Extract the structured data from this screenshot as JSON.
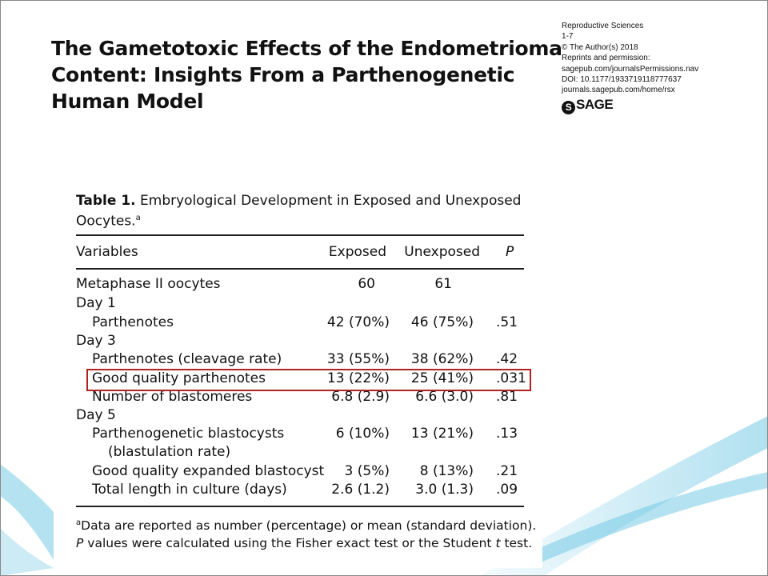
{
  "header": {
    "title_lines": [
      "The Gametotoxic Effects of the Endometrioma",
      "Content: Insights From a Parthenogenetic",
      "Human Model"
    ],
    "meta": [
      "Reproductive Sciences",
      "1-7",
      "© The Author(s) 2018",
      "Reprints and permission:",
      "sagepub.com/journalsPermissions.nav",
      "DOI: 10.1177/1933719118777637",
      "journals.sagepub.com/home/rsx"
    ],
    "logo": "SAGE"
  },
  "table": {
    "caption_label": "Table 1.",
    "caption_text": " Embryological Development in Exposed and Unexposed",
    "caption_text2": "Oocytes.",
    "caption_sup": "a",
    "columns": [
      "Variables",
      "Exposed",
      "Unexposed",
      "P"
    ],
    "rows": [
      {
        "label": "Metaphase II oocytes",
        "exposed": "60",
        "unexposed": "61",
        "p": ""
      },
      {
        "label": "Day 1",
        "exposed": "",
        "unexposed": "",
        "p": ""
      },
      {
        "label": "Parthenotes",
        "exposed": "42 (70%)",
        "unexposed": "46 (75%)",
        "p": ".51"
      },
      {
        "label": "Day 3",
        "exposed": "",
        "unexposed": "",
        "p": ""
      },
      {
        "label": "Parthenotes (cleavage rate)",
        "exposed": "33 (55%)",
        "unexposed": "38 (62%)",
        "p": ".42"
      },
      {
        "label": "Good quality parthenotes",
        "exposed": "13 (22%)",
        "unexposed": "25 (41%)",
        "p": ".031"
      },
      {
        "label": "Number of blastomeres",
        "exposed": "6.8 (2.9)",
        "unexposed": "6.6 (3.0)",
        "p": ".81"
      },
      {
        "label": "Day 5",
        "exposed": "",
        "unexposed": "",
        "p": ""
      },
      {
        "label": "Parthenogenetic blastocysts",
        "exposed": "6 (10%)",
        "unexposed": "13 (21%)",
        "p": ".13"
      },
      {
        "label": "(blastulation rate)",
        "exposed": "",
        "unexposed": "",
        "p": ""
      },
      {
        "label": "Good quality expanded blastocyst",
        "exposed": "3 (5%)",
        "unexposed": "8 (13%)",
        "p": ".21"
      },
      {
        "label": "Total length in culture (days)",
        "exposed": "2.6 (1.2)",
        "unexposed": "3.0 (1.3)",
        "p": ".09"
      }
    ],
    "highlight_color": "#b22222",
    "footnote_sup": "a",
    "footnote1": "Data are reported as number (percentage) or mean (standard deviation).",
    "footnote2_p": "P",
    "footnote2_a": " values were calculated using the Fisher exact test or the Student ",
    "footnote2_t": "t",
    "footnote2_b": " test."
  }
}
